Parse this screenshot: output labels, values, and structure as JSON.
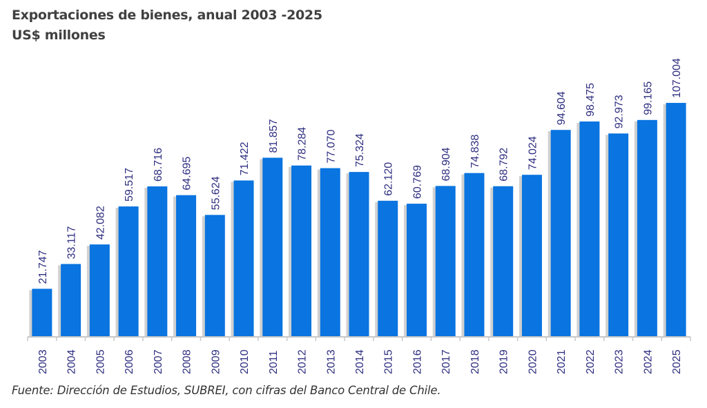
{
  "chart_data": {
    "type": "bar",
    "title": "Exportaciones de bienes, anual 2003 -2025",
    "subtitle": "US$ millones",
    "source": "Fuente: Dirección de Estudios, SUBREI, con cifras del Banco Central de Chile.",
    "categories": [
      "2003",
      "2004",
      "2005",
      "2006",
      "2007",
      "2008",
      "2009",
      "2010",
      "2011",
      "2012",
      "2013",
      "2014",
      "2015",
      "2016",
      "2017",
      "2018",
      "2019",
      "2020",
      "2021",
      "2022",
      "2023",
      "2024",
      "2025"
    ],
    "values": [
      21747,
      33117,
      42082,
      59517,
      68716,
      64695,
      55624,
      71422,
      81857,
      78284,
      77070,
      75324,
      62120,
      60769,
      68904,
      74838,
      68792,
      74024,
      94604,
      98475,
      92973,
      99165,
      107004
    ],
    "data_labels": [
      "21.747",
      "33.117",
      "42.082",
      "59.517",
      "68.716",
      "64.695",
      "55.624",
      "71.422",
      "81.857",
      "78.284",
      "77.070",
      "75.324",
      "62.120",
      "60.769",
      "68.904",
      "74.838",
      "68.792",
      "74.024",
      "94.604",
      "98.475",
      "92.973",
      "99.165",
      "107.004"
    ],
    "ylim": [
      0,
      120000
    ],
    "grid": false,
    "legend": "none",
    "colors": {
      "bar": "#0a74e0",
      "label": "#2e2e80",
      "axis": "#c8c8c8"
    }
  }
}
